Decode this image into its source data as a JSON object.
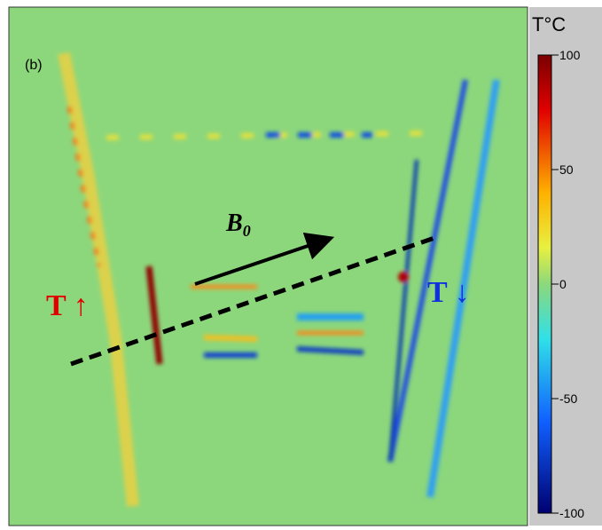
{
  "panel_label": "(b)",
  "colorbar": {
    "title": "T°C",
    "range": [
      -100,
      100
    ],
    "ticks": [
      100,
      50,
      0,
      -50,
      -100
    ]
  },
  "annotations": {
    "left": "T ↑",
    "right": "T ↓",
    "field": {
      "symbol": "B",
      "subscript": "0"
    }
  }
}
